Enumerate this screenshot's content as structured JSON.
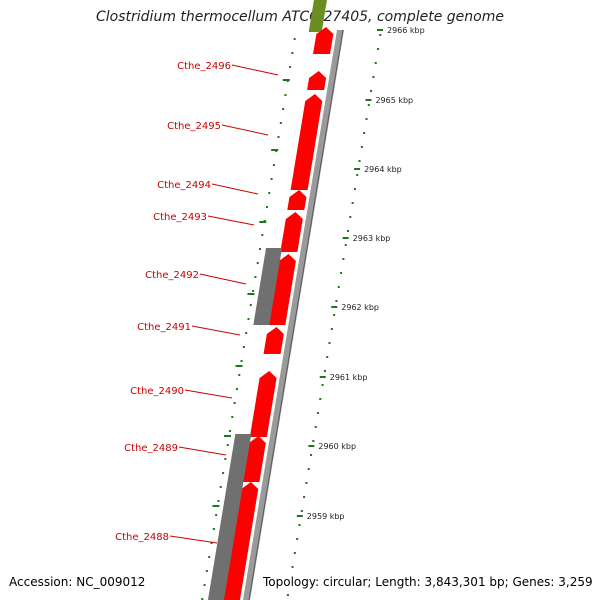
{
  "title": "Clostridium thermocellum ATCC 27405, complete genome",
  "footer": {
    "accession": "Accession: NC_009012",
    "summary": "Topology: circular; Length: 3,843,301 bp; Genes: 3,259"
  },
  "colors": {
    "forward_gene": "#ff0000",
    "reverse_gene": "#707070",
    "other_feature": "#6b8e23",
    "gene_label": "#cc0000",
    "ruler": "#1a7a1a"
  },
  "gene_labels": [
    "Cthe_2496",
    "Cthe_2495",
    "Cthe_2494",
    "Cthe_2493",
    "Cthe_2492",
    "Cthe_2491",
    "Cthe_2490",
    "Cthe_2489",
    "Cthe_2488"
  ],
  "ruler_labels": [
    "2966 kbp",
    "2965 kbp",
    "2964 kbp",
    "2963 kbp",
    "2962 kbp",
    "2961 kbp",
    "2960 kbp",
    "2959 kbp"
  ]
}
